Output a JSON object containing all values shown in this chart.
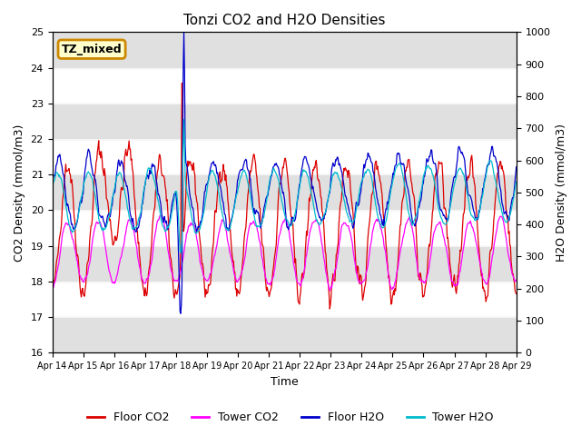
{
  "title": "Tonzi CO2 and H2O Densities",
  "xlabel": "Time",
  "ylabel_left": "CO2 Density (mmol/m3)",
  "ylabel_right": "H2O Density (mmol/m3)",
  "ylim_left": [
    16.0,
    25.0
  ],
  "ylim_right": [
    0,
    1000
  ],
  "yticks_left": [
    16.0,
    17.0,
    18.0,
    19.0,
    20.0,
    21.0,
    22.0,
    23.0,
    24.0,
    25.0
  ],
  "yticks_right": [
    0,
    100,
    200,
    300,
    400,
    500,
    600,
    700,
    800,
    900,
    1000
  ],
  "xtick_labels": [
    "Apr 14",
    "Apr 15",
    "Apr 16",
    "Apr 17",
    "Apr 18",
    "Apr 19",
    "Apr 20",
    "Apr 21",
    "Apr 22",
    "Apr 23",
    "Apr 24",
    "Apr 25",
    "Apr 26",
    "Apr 27",
    "Apr 28",
    "Apr 29"
  ],
  "annotation_text": "TZ_mixed",
  "annotation_facecolor": "#ffffcc",
  "annotation_edgecolor": "#cc8800",
  "colors": {
    "floor_co2": "#dd0000",
    "tower_co2": "#ff00ff",
    "floor_h2o": "#0000cc",
    "tower_h2o": "#00bbcc"
  },
  "legend_labels": [
    "Floor CO2",
    "Tower CO2",
    "Floor H2O",
    "Tower H2O"
  ],
  "band_color": "#e0e0e0",
  "n_points": 720,
  "seed": 42
}
